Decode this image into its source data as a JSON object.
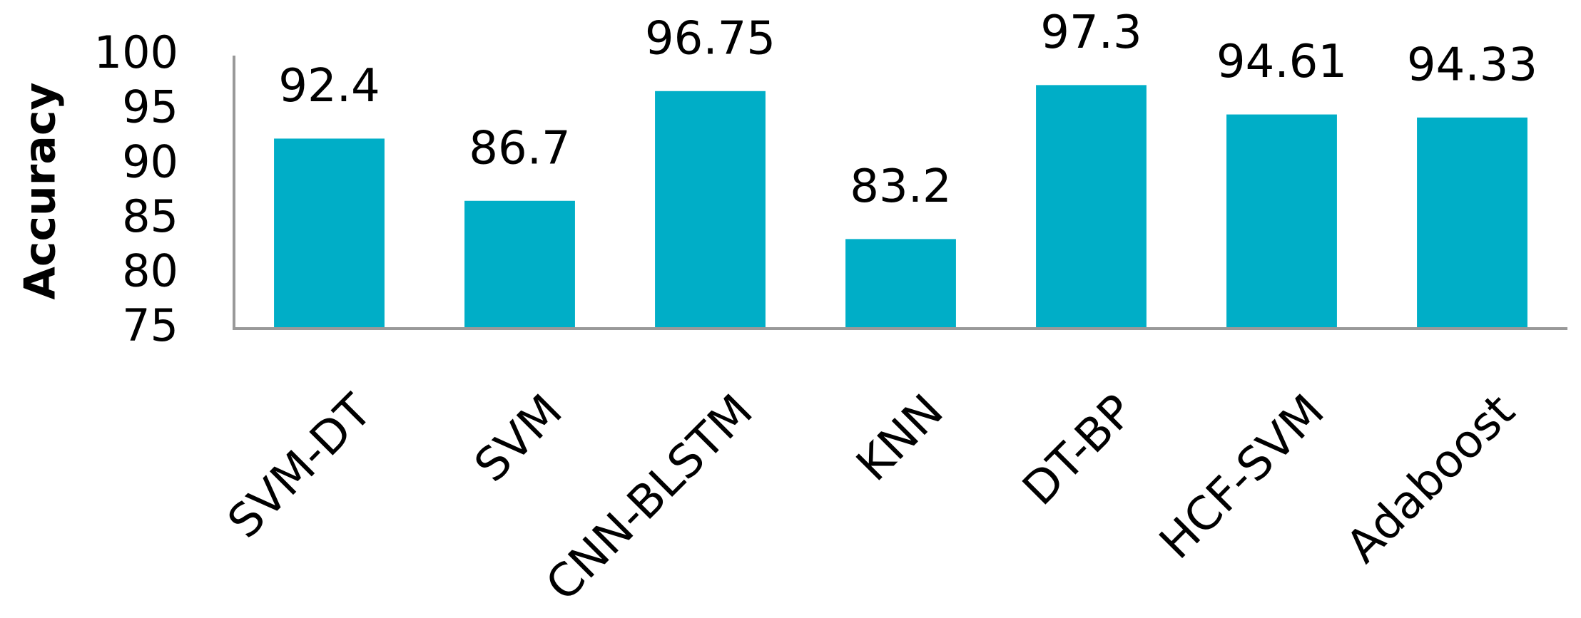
{
  "chart_data": {
    "type": "bar",
    "y_label": "Accuracy",
    "categories": [
      "SVM-DT",
      "SVM",
      "CNN-BLSTM",
      "KNN",
      "DT-BP",
      "HCF-SVM",
      "Adaboost"
    ],
    "values": [
      92.4,
      86.7,
      96.75,
      83.2,
      97.3,
      94.61,
      94.33
    ],
    "color": "#00aec7",
    "ylim": [
      75,
      100
    ],
    "yticks": [
      75,
      80,
      85,
      90,
      95,
      100
    ],
    "grid": false
  }
}
